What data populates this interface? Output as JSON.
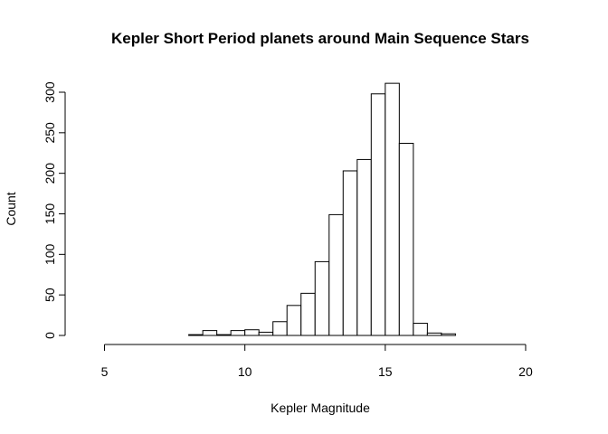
{
  "chart_data": {
    "type": "bar",
    "title": "Kepler Short Period planets around Main Sequence Stars",
    "xlabel": "Kepler Magnitude",
    "ylabel": "Count",
    "xlim": [
      4.5,
      21
    ],
    "ylim": [
      0,
      310
    ],
    "x_ticks": [
      5,
      10,
      15,
      20
    ],
    "y_ticks": [
      0,
      50,
      100,
      150,
      200,
      250,
      300
    ],
    "bin_width": 0.5,
    "bin_starts": [
      4.5,
      5.0,
      5.5,
      6.0,
      6.5,
      7.0,
      7.5,
      8.0,
      8.5,
      9.0,
      9.5,
      10.0,
      10.5,
      11.0,
      11.5,
      12.0,
      12.5,
      13.0,
      13.5,
      14.0,
      14.5,
      15.0,
      15.5,
      16.0,
      16.5,
      17.0,
      17.5,
      18.0,
      18.5,
      19.0,
      19.5,
      20.0,
      20.5
    ],
    "values": [
      0,
      0,
      0,
      0,
      0,
      0,
      0,
      1,
      6,
      1,
      6,
      7,
      4,
      17,
      37,
      52,
      91,
      149,
      203,
      217,
      298,
      311,
      237,
      15,
      3,
      2,
      0,
      0,
      0,
      0,
      0,
      0,
      0
    ],
    "grid": false,
    "legend": "none"
  }
}
